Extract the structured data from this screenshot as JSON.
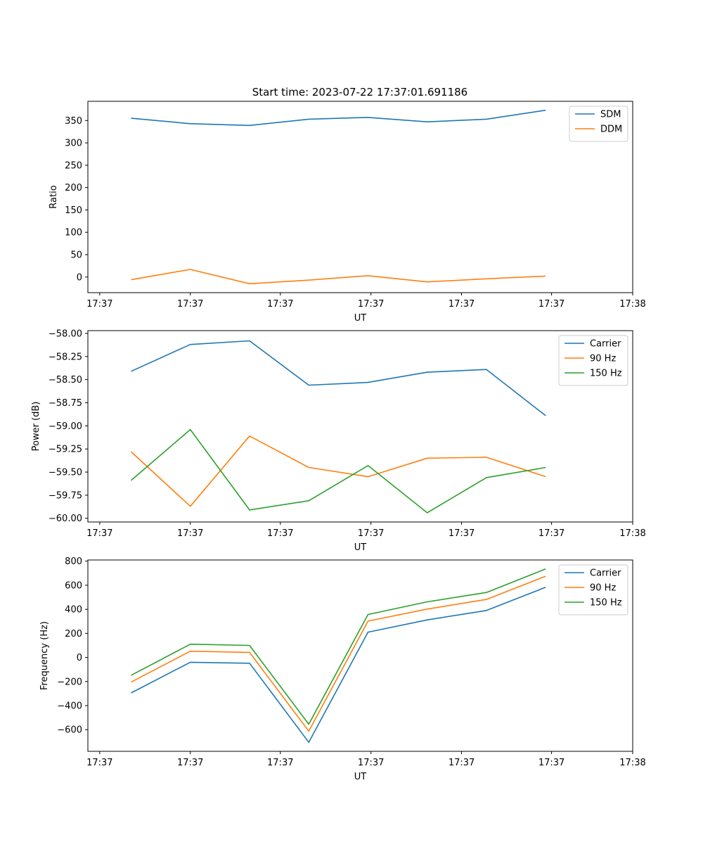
{
  "figure_title": "Start time: 2023-07-22 17:37:01.691186",
  "colors": {
    "blue": "#1f77b4",
    "orange": "#ff7f0e",
    "green": "#2ca02c"
  },
  "chart_data": [
    {
      "type": "line",
      "title": "Start time: 2023-07-22 17:37:01.691186",
      "xlabel": "UT",
      "ylabel": "Ratio",
      "x": [
        1,
        2,
        3,
        4,
        5,
        6,
        7,
        8
      ],
      "xlim": [
        0.27,
        9.47
      ],
      "x_ticks": [
        0.47,
        2.0,
        3.52,
        5.05,
        6.58,
        8.1,
        9.47
      ],
      "x_tick_labels": [
        "17:37",
        "17:37",
        "17:37",
        "17:37",
        "17:37",
        "17:37",
        "17:38"
      ],
      "ylim": [
        -35,
        393
      ],
      "y_ticks": [
        0,
        50,
        100,
        150,
        200,
        250,
        300,
        350
      ],
      "y_tick_labels": [
        "0",
        "50",
        "100",
        "150",
        "200",
        "250",
        "300",
        "350"
      ],
      "legend_position": "top-right",
      "series": [
        {
          "name": "SDM",
          "color": "#1f77b4",
          "values": [
            355,
            343,
            339,
            353,
            357,
            347,
            353,
            373
          ]
        },
        {
          "name": "DDM",
          "color": "#ff7f0e",
          "values": [
            -6,
            17,
            -15,
            -7,
            3,
            -11,
            -4,
            2
          ]
        }
      ]
    },
    {
      "type": "line",
      "title": "",
      "xlabel": "UT",
      "ylabel": "Power (dB)",
      "x": [
        1,
        2,
        3,
        4,
        5,
        6,
        7,
        8
      ],
      "xlim": [
        0.27,
        9.47
      ],
      "x_ticks": [
        0.47,
        2.0,
        3.52,
        5.05,
        6.58,
        8.1,
        9.47
      ],
      "x_tick_labels": [
        "17:37",
        "17:37",
        "17:37",
        "17:37",
        "17:37",
        "17:37",
        "17:38"
      ],
      "ylim": [
        -60.04,
        -57.97
      ],
      "y_ticks": [
        -58.0,
        -58.25,
        -58.5,
        -58.75,
        -59.0,
        -59.25,
        -59.5,
        -59.75,
        -60.0
      ],
      "y_tick_labels": [
        "−58.00",
        "−58.25",
        "−58.50",
        "−58.75",
        "−59.00",
        "−59.25",
        "−59.50",
        "−59.75",
        "−60.00"
      ],
      "legend_position": "top-right",
      "series": [
        {
          "name": "Carrier",
          "color": "#1f77b4",
          "values": [
            -58.41,
            -58.12,
            -58.08,
            -58.56,
            -58.53,
            -58.42,
            -58.39,
            -58.89
          ]
        },
        {
          "name": "90 Hz",
          "color": "#ff7f0e",
          "values": [
            -59.28,
            -59.87,
            -59.11,
            -59.45,
            -59.55,
            -59.35,
            -59.34,
            -59.55
          ]
        },
        {
          "name": "150 Hz",
          "color": "#2ca02c",
          "values": [
            -59.59,
            -59.04,
            -59.91,
            -59.81,
            -59.43,
            -59.94,
            -59.56,
            -59.45
          ]
        }
      ]
    },
    {
      "type": "line",
      "title": "",
      "xlabel": "UT",
      "ylabel": "Frequency (Hz)",
      "x": [
        1,
        2,
        3,
        4,
        5,
        6,
        7,
        8
      ],
      "xlim": [
        0.27,
        9.47
      ],
      "x_ticks": [
        0.47,
        2.0,
        3.52,
        5.05,
        6.58,
        8.1,
        9.47
      ],
      "x_tick_labels": [
        "17:37",
        "17:37",
        "17:37",
        "17:37",
        "17:37",
        "17:37",
        "17:38"
      ],
      "ylim": [
        -780,
        810
      ],
      "y_ticks": [
        800,
        600,
        400,
        200,
        0,
        -200,
        -400,
        -600
      ],
      "y_tick_labels": [
        "800",
        "600",
        "400",
        "200",
        "0",
        "−200",
        "−400",
        "−600"
      ],
      "legend_position": "top-right",
      "series": [
        {
          "name": "Carrier",
          "color": "#1f77b4",
          "values": [
            -295,
            -40,
            -48,
            -705,
            210,
            312,
            390,
            583
          ]
        },
        {
          "name": "90 Hz",
          "color": "#ff7f0e",
          "values": [
            -205,
            52,
            42,
            -612,
            302,
            402,
            482,
            675
          ]
        },
        {
          "name": "150 Hz",
          "color": "#2ca02c",
          "values": [
            -148,
            110,
            100,
            -555,
            357,
            462,
            540,
            735
          ]
        }
      ]
    }
  ]
}
